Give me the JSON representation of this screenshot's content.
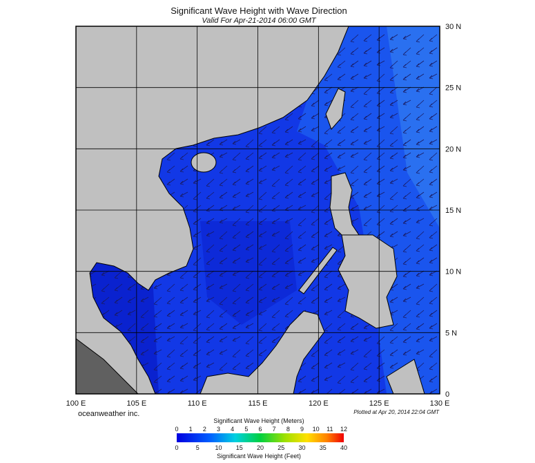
{
  "header": {
    "title": "Significant Wave Height with Wave Direction",
    "subtitle": "Valid For Apr-21-2014 06:00 GMT"
  },
  "map": {
    "lon_labels": [
      "100 E",
      "105 E",
      "110 E",
      "115 E",
      "120 E",
      "125 E",
      "130 E"
    ],
    "lat_labels": [
      "0",
      "5 N",
      "10 N",
      "15 N",
      "20 N",
      "25 N",
      "30 N"
    ]
  },
  "footer": {
    "credit": "oceanweather inc.",
    "plotted": "Plotted at Apr 20, 2014 22:04 GMT"
  },
  "colorbar": {
    "meters_title": "Significant Wave Height (Meters)",
    "meters": [
      0,
      1,
      2,
      3,
      4,
      5,
      6,
      7,
      8,
      9,
      10,
      11,
      12
    ],
    "feet": [
      0,
      5,
      10,
      15,
      20,
      25,
      30,
      35,
      40
    ],
    "feet_title": "Significant Wave Height (Feet)"
  }
}
